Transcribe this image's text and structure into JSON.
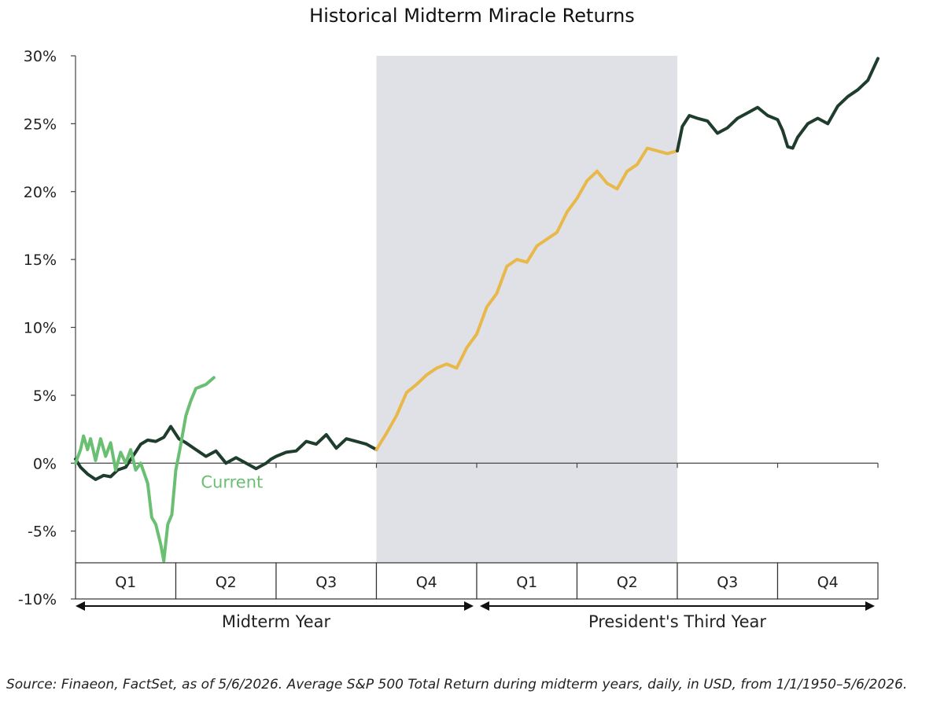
{
  "chart_data": {
    "type": "line",
    "title": "Historical Midterm Miracle Returns",
    "y_axis": {
      "min": -10,
      "max": 30,
      "step": 5,
      "tick_labels": [
        "30%",
        "25%",
        "20%",
        "15%",
        "10%",
        "5%",
        "0%",
        "-5%",
        "-10%"
      ]
    },
    "x_axis": {
      "quarter_labels": [
        "Q1",
        "Q2",
        "Q3",
        "Q4",
        "Q1",
        "Q2",
        "Q3",
        "Q4"
      ],
      "period_labels": [
        "Midterm Year",
        "President's Third Year"
      ],
      "range_quarters": [
        0,
        8
      ]
    },
    "shaded_region": {
      "from_quarter": 3,
      "to_quarter": 6,
      "color": "#dfe1e6"
    },
    "colors": {
      "historical": "#1f3d2c",
      "highlight": "#e8b84a",
      "current": "#6abf72",
      "shade": "#dfe1e6"
    },
    "series": [
      {
        "role": "historical",
        "x": [
          0,
          0.05,
          0.12,
          0.2,
          0.28,
          0.35,
          0.42,
          0.5,
          0.58,
          0.65,
          0.72,
          0.8,
          0.88,
          0.95,
          1.03,
          1.1,
          1.2,
          1.3,
          1.4,
          1.5,
          1.6,
          1.7,
          1.8,
          1.9,
          1.95,
          2.0,
          2.1,
          2.2,
          2.3,
          2.4,
          2.5,
          2.6,
          2.7,
          2.8,
          2.9,
          3.0
        ],
        "y": [
          0.3,
          -0.3,
          -0.8,
          -1.2,
          -0.9,
          -1.0,
          -0.5,
          -0.3,
          0.6,
          1.4,
          1.7,
          1.6,
          1.9,
          2.7,
          1.8,
          1.5,
          1.0,
          0.5,
          0.9,
          0.0,
          0.4,
          0.0,
          -0.4,
          0.0,
          0.3,
          0.5,
          0.8,
          0.9,
          1.6,
          1.4,
          2.1,
          1.1,
          1.8,
          1.6,
          1.4,
          1.0
        ]
      },
      {
        "role": "highlight",
        "x": [
          3.0,
          3.1,
          3.2,
          3.3,
          3.4,
          3.5,
          3.6,
          3.7,
          3.8,
          3.9,
          4.0,
          4.1,
          4.2,
          4.3,
          4.4,
          4.5,
          4.6,
          4.7,
          4.8,
          4.9,
          5.0,
          5.1,
          5.2,
          5.3,
          5.4,
          5.5,
          5.6,
          5.7,
          5.8,
          5.9,
          6.0
        ],
        "y": [
          1.0,
          2.2,
          3.5,
          5.2,
          5.8,
          6.5,
          7.0,
          7.3,
          7.0,
          8.5,
          9.5,
          11.5,
          12.5,
          14.5,
          15.0,
          14.8,
          16.0,
          16.5,
          17.0,
          18.5,
          19.5,
          20.8,
          21.5,
          20.6,
          20.2,
          21.5,
          22.0,
          23.2,
          23.0,
          22.8,
          23.0
        ]
      },
      {
        "role": "historical",
        "x": [
          6.0,
          6.05,
          6.12,
          6.2,
          6.3,
          6.4,
          6.5,
          6.6,
          6.7,
          6.8,
          6.9,
          7.0,
          7.05,
          7.1,
          7.15,
          7.2,
          7.3,
          7.4,
          7.5,
          7.6,
          7.7,
          7.8,
          7.9,
          8.0
        ],
        "y": [
          23.0,
          24.8,
          25.6,
          25.4,
          25.2,
          24.3,
          24.7,
          25.4,
          25.8,
          26.2,
          25.6,
          25.3,
          24.5,
          23.3,
          23.2,
          24.0,
          25.0,
          25.4,
          25.0,
          26.3,
          27.0,
          27.5,
          28.2,
          29.8
        ]
      },
      {
        "role": "current",
        "name": "Current",
        "x": [
          0,
          0.05,
          0.08,
          0.12,
          0.15,
          0.2,
          0.25,
          0.3,
          0.35,
          0.4,
          0.45,
          0.5,
          0.55,
          0.6,
          0.65,
          0.72,
          0.76,
          0.8,
          0.85,
          0.88,
          0.92,
          0.96,
          1.0,
          1.04,
          1.1,
          1.15,
          1.2,
          1.3,
          1.38
        ],
        "y": [
          0.0,
          1.0,
          2.0,
          1.0,
          1.8,
          0.2,
          1.8,
          0.5,
          1.5,
          -0.5,
          0.8,
          0.0,
          1.0,
          -0.5,
          0.0,
          -1.5,
          -4.0,
          -4.5,
          -6.0,
          -7.2,
          -4.5,
          -3.8,
          -0.5,
          1.0,
          3.5,
          4.6,
          5.5,
          5.8,
          6.3
        ]
      }
    ],
    "annotations": [
      {
        "text": "Current",
        "x": 1.25,
        "y": -1.8
      }
    ]
  },
  "footer": {
    "source": "Source: Finaeon, FactSet, as of 5/6/2026. Average S&P 500 Total Return during midterm years, daily, in USD, from 1/1/1950–5/6/2026."
  }
}
